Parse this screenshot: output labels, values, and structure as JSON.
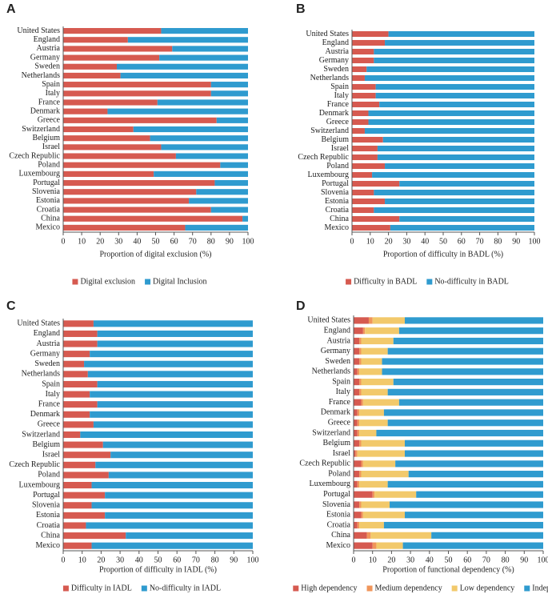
{
  "chart_data": [
    {
      "type": "bar",
      "orientation": "horizontal",
      "stacked": true,
      "panel": "A",
      "xlabel": "Proportion of digital exclusion (%)",
      "legend": "bottom",
      "categories": [
        "United States",
        "England",
        "Austria",
        "Germany",
        "Sweden",
        "Netherlands",
        "Spain",
        "Italy",
        "France",
        "Denmark",
        "Greece",
        "Switzerland",
        "Belgium",
        "Israel",
        "Czech Republic",
        "Poland",
        "Luxembourg",
        "Portugal",
        "Slovenia",
        "Estonia",
        "Croatia",
        "China",
        "Mexico"
      ],
      "series": [
        {
          "name": "Digital exclusion",
          "color": "#d65a50",
          "values": [
            53,
            35,
            59,
            52,
            29,
            31,
            80,
            80,
            51,
            24,
            83,
            38,
            47,
            53,
            61,
            85,
            49,
            82,
            72,
            68,
            80,
            97,
            66
          ]
        },
        {
          "name": "Digital Inclusion",
          "color": "#2f9bcf",
          "values": [
            47,
            65,
            41,
            48,
            71,
            69,
            20,
            20,
            49,
            76,
            17,
            62,
            53,
            47,
            39,
            15,
            51,
            18,
            28,
            32,
            20,
            3,
            34
          ]
        }
      ],
      "xlim": [
        0,
        100
      ],
      "xticks": [
        0,
        10,
        20,
        30,
        40,
        50,
        60,
        70,
        80,
        90,
        100
      ]
    },
    {
      "type": "bar",
      "orientation": "horizontal",
      "stacked": true,
      "panel": "B",
      "xlabel": "Proportion of difficulty in BADL (%)",
      "legend": "bottom",
      "categories": [
        "United States",
        "England",
        "Austria",
        "Germany",
        "Sweden",
        "Netherlands",
        "Spain",
        "Italy",
        "France",
        "Denmark",
        "Greece",
        "Switzerland",
        "Belgium",
        "Israel",
        "Czech Republic",
        "Poland",
        "Luxembourg",
        "Portugal",
        "Slovenia",
        "Estonia",
        "Croatia",
        "China",
        "Mexico"
      ],
      "series": [
        {
          "name": "Difficulty in BADL",
          "color": "#d65a50",
          "values": [
            20,
            18,
            12,
            12,
            8,
            7,
            13,
            13,
            15,
            9,
            9,
            7,
            17,
            14,
            14,
            18,
            11,
            26,
            12,
            18,
            12,
            26,
            21
          ]
        },
        {
          "name": "No-difficulty in BADL",
          "color": "#2f9bcf",
          "values": [
            80,
            82,
            88,
            88,
            92,
            93,
            87,
            87,
            85,
            91,
            91,
            93,
            83,
            86,
            86,
            82,
            89,
            74,
            88,
            82,
            88,
            74,
            79
          ]
        }
      ],
      "xlim": [
        0,
        100
      ],
      "xticks": [
        0,
        10,
        20,
        30,
        40,
        50,
        60,
        70,
        80,
        90,
        100
      ]
    },
    {
      "type": "bar",
      "orientation": "horizontal",
      "stacked": true,
      "panel": "C",
      "xlabel": "Proportion of difficulty in IADL (%)",
      "legend": "bottom",
      "categories": [
        "United States",
        "England",
        "Austria",
        "Germany",
        "Sweden",
        "Netherlands",
        "Spain",
        "Italy",
        "France",
        "Denmark",
        "Greece",
        "Switzerland",
        "Belgium",
        "Israel",
        "Czech Republic",
        "Poland",
        "Luxembourg",
        "Portugal",
        "Slovenia",
        "Estonia",
        "Croatia",
        "China",
        "Mexico"
      ],
      "series": [
        {
          "name": "Difficulty in IADL",
          "color": "#d65a50",
          "values": [
            16,
            18,
            18,
            14,
            11,
            13,
            18,
            14,
            18,
            14,
            16,
            9,
            21,
            25,
            17,
            24,
            15,
            22,
            15,
            22,
            12,
            33,
            15
          ]
        },
        {
          "name": "No-difficulty in IADL",
          "color": "#2f9bcf",
          "values": [
            84,
            82,
            82,
            86,
            89,
            87,
            82,
            86,
            82,
            86,
            84,
            91,
            79,
            75,
            83,
            76,
            85,
            78,
            85,
            78,
            88,
            67,
            85
          ]
        }
      ],
      "xlim": [
        0,
        100
      ],
      "xticks": [
        0,
        10,
        20,
        30,
        40,
        50,
        60,
        70,
        80,
        90,
        100
      ]
    },
    {
      "type": "bar",
      "orientation": "horizontal",
      "stacked": true,
      "panel": "D",
      "xlabel": "Proportion of functional dependency (%)",
      "legend": "bottom",
      "categories": [
        "United States",
        "England",
        "Austria",
        "Germany",
        "Sweden",
        "Netherlands",
        "Spain",
        "Italy",
        "France",
        "Denmark",
        "Greece",
        "Switzerland",
        "Belgium",
        "Israel",
        "Czech Republic",
        "Poland",
        "Luxembourg",
        "Portugal",
        "Slovenia",
        "Estonia",
        "Croatia",
        "China",
        "Mexico"
      ],
      "series": [
        {
          "name": "High dependency",
          "color": "#d65a50",
          "values": [
            8,
            5,
            3,
            3,
            3,
            2,
            3,
            3,
            4,
            2,
            2,
            2,
            3,
            1,
            4,
            3,
            2,
            10,
            3,
            4,
            2,
            7,
            10
          ]
        },
        {
          "name": "Medium dependency",
          "color": "#f0955a",
          "values": [
            2,
            1,
            1,
            1,
            1,
            1,
            1,
            1,
            1,
            1,
            1,
            1,
            1,
            1,
            1,
            1,
            1,
            1,
            1,
            1,
            1,
            2,
            2
          ]
        },
        {
          "name": "Low dependency",
          "color": "#f2c96b",
          "values": [
            17,
            18,
            17,
            14,
            11,
            12,
            17,
            14,
            19,
            13,
            15,
            9,
            23,
            25,
            17,
            25,
            15,
            22,
            15,
            22,
            13,
            32,
            14
          ]
        },
        {
          "name": "Independent",
          "color": "#2f9bcf",
          "values": [
            73,
            76,
            79,
            82,
            85,
            85,
            79,
            82,
            76,
            84,
            82,
            88,
            73,
            73,
            78,
            71,
            82,
            67,
            81,
            73,
            84,
            59,
            74
          ]
        }
      ],
      "xlim": [
        0,
        100
      ],
      "xticks": [
        0,
        10,
        20,
        30,
        40,
        50,
        60,
        70,
        80,
        90,
        100
      ]
    }
  ]
}
